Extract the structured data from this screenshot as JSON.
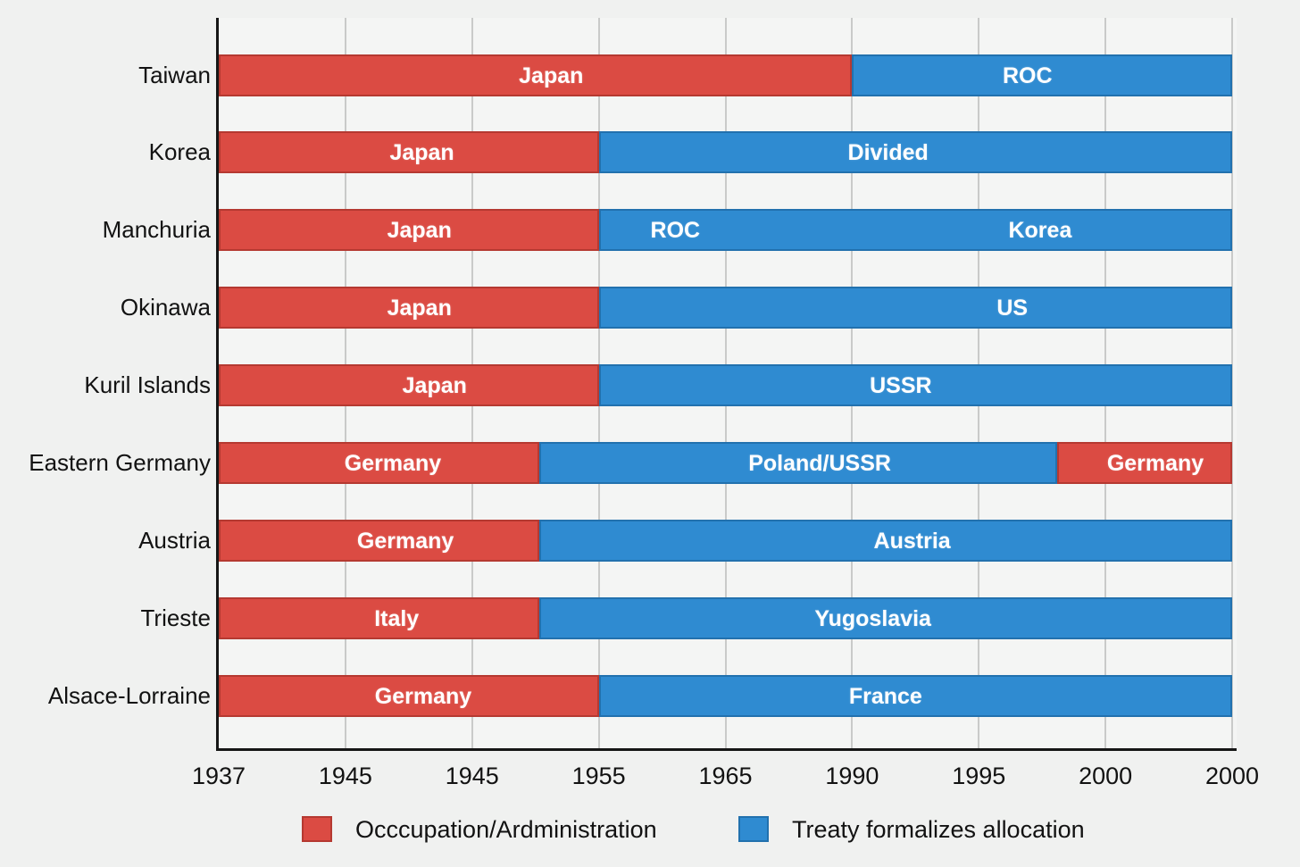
{
  "chart_data": {
    "type": "bar",
    "subtype": "horizontal-stacked-timeline",
    "title": "",
    "xlabel": "",
    "ylabel": "",
    "grid": true,
    "legend_position": "bottom",
    "categories": [
      "Taiwan",
      "Korea",
      "Manchuria",
      "Okinawa",
      "Kuril Islands",
      "Eastern Germany",
      "Austria",
      "Trieste",
      "Alsace-Lorraine"
    ],
    "x_tick_labels": [
      "1937",
      "1945",
      "1945",
      "1955",
      "1965",
      "1990",
      "1995",
      "2000",
      "2000"
    ],
    "x_units_range": [
      0,
      8
    ],
    "colors": {
      "occupation": "#DB4B43",
      "occupation_border": "#B53931",
      "treaty": "#2F8BD1",
      "treaty_border": "#2271AE",
      "axis": "#161616",
      "gridline": "#c9cac9",
      "text": "#121212"
    },
    "legend": [
      {
        "label": "Occcupation/Ardministration",
        "kind": "occupation"
      },
      {
        "label": "Treaty formalizes allocation",
        "kind": "treaty"
      }
    ],
    "rows": [
      {
        "category": "Taiwan",
        "segments": [
          {
            "kind": "occupation",
            "start": 0,
            "end": 5,
            "labels": [
              {
                "text": "Japan",
                "at": 2.61
              }
            ]
          },
          {
            "kind": "treaty",
            "start": 5,
            "end": 8,
            "labels": [
              {
                "text": "ROC",
                "at": 6.37
              }
            ]
          }
        ]
      },
      {
        "category": "Korea",
        "segments": [
          {
            "kind": "occupation",
            "start": 0,
            "end": 3,
            "labels": [
              {
                "text": "Japan",
                "at": 1.59
              }
            ]
          },
          {
            "kind": "treaty",
            "start": 3,
            "end": 8,
            "labels": [
              {
                "text": "Divided",
                "at": 5.27
              }
            ]
          }
        ]
      },
      {
        "category": "Manchuria",
        "segments": [
          {
            "kind": "occupation",
            "start": 0,
            "end": 3,
            "labels": [
              {
                "text": "Japan",
                "at": 1.57
              }
            ]
          },
          {
            "kind": "treaty",
            "start": 3,
            "end": 8,
            "labels": [
              {
                "text": "ROC",
                "at": 3.59
              },
              {
                "text": "Korea",
                "at": 6.47
              }
            ]
          }
        ]
      },
      {
        "category": "Okinawa",
        "segments": [
          {
            "kind": "occupation",
            "start": 0,
            "end": 3,
            "labels": [
              {
                "text": "Japan",
                "at": 1.57
              }
            ]
          },
          {
            "kind": "treaty",
            "start": 3,
            "end": 8,
            "labels": [
              {
                "text": "US",
                "at": 6.25
              }
            ]
          }
        ]
      },
      {
        "category": "Kuril Islands",
        "segments": [
          {
            "kind": "occupation",
            "start": 0,
            "end": 3,
            "labels": [
              {
                "text": "Japan",
                "at": 1.69
              }
            ]
          },
          {
            "kind": "treaty",
            "start": 3,
            "end": 8,
            "labels": [
              {
                "text": "USSR",
                "at": 5.37
              }
            ]
          }
        ]
      },
      {
        "category": "Eastern Germany",
        "segments": [
          {
            "kind": "occupation",
            "start": 0,
            "end": 2.53,
            "labels": [
              {
                "text": "Germany",
                "at": 1.36
              }
            ]
          },
          {
            "kind": "treaty",
            "start": 2.53,
            "end": 6.62,
            "labels": [
              {
                "text": "Poland/USSR",
                "at": 4.73
              }
            ]
          },
          {
            "kind": "occupation",
            "start": 6.62,
            "end": 8,
            "labels": [
              {
                "text": "Germany",
                "at": 7.38
              }
            ]
          }
        ]
      },
      {
        "category": "Austria",
        "segments": [
          {
            "kind": "occupation",
            "start": 0,
            "end": 2.53,
            "labels": [
              {
                "text": "Germany",
                "at": 1.46
              }
            ]
          },
          {
            "kind": "treaty",
            "start": 2.53,
            "end": 8,
            "labels": [
              {
                "text": "Austria",
                "at": 5.46
              }
            ]
          }
        ]
      },
      {
        "category": "Trieste",
        "segments": [
          {
            "kind": "occupation",
            "start": 0,
            "end": 2.53,
            "labels": [
              {
                "text": "Italy",
                "at": 1.39
              }
            ]
          },
          {
            "kind": "treaty",
            "start": 2.53,
            "end": 8,
            "labels": [
              {
                "text": "Yugoslavia",
                "at": 5.15
              }
            ]
          }
        ]
      },
      {
        "category": "Alsace-Lorraine",
        "segments": [
          {
            "kind": "occupation",
            "start": 0,
            "end": 3,
            "labels": [
              {
                "text": "Germany",
                "at": 1.6
              }
            ]
          },
          {
            "kind": "treaty",
            "start": 3,
            "end": 8,
            "labels": [
              {
                "text": "France",
                "at": 5.25
              }
            ]
          }
        ]
      }
    ]
  }
}
